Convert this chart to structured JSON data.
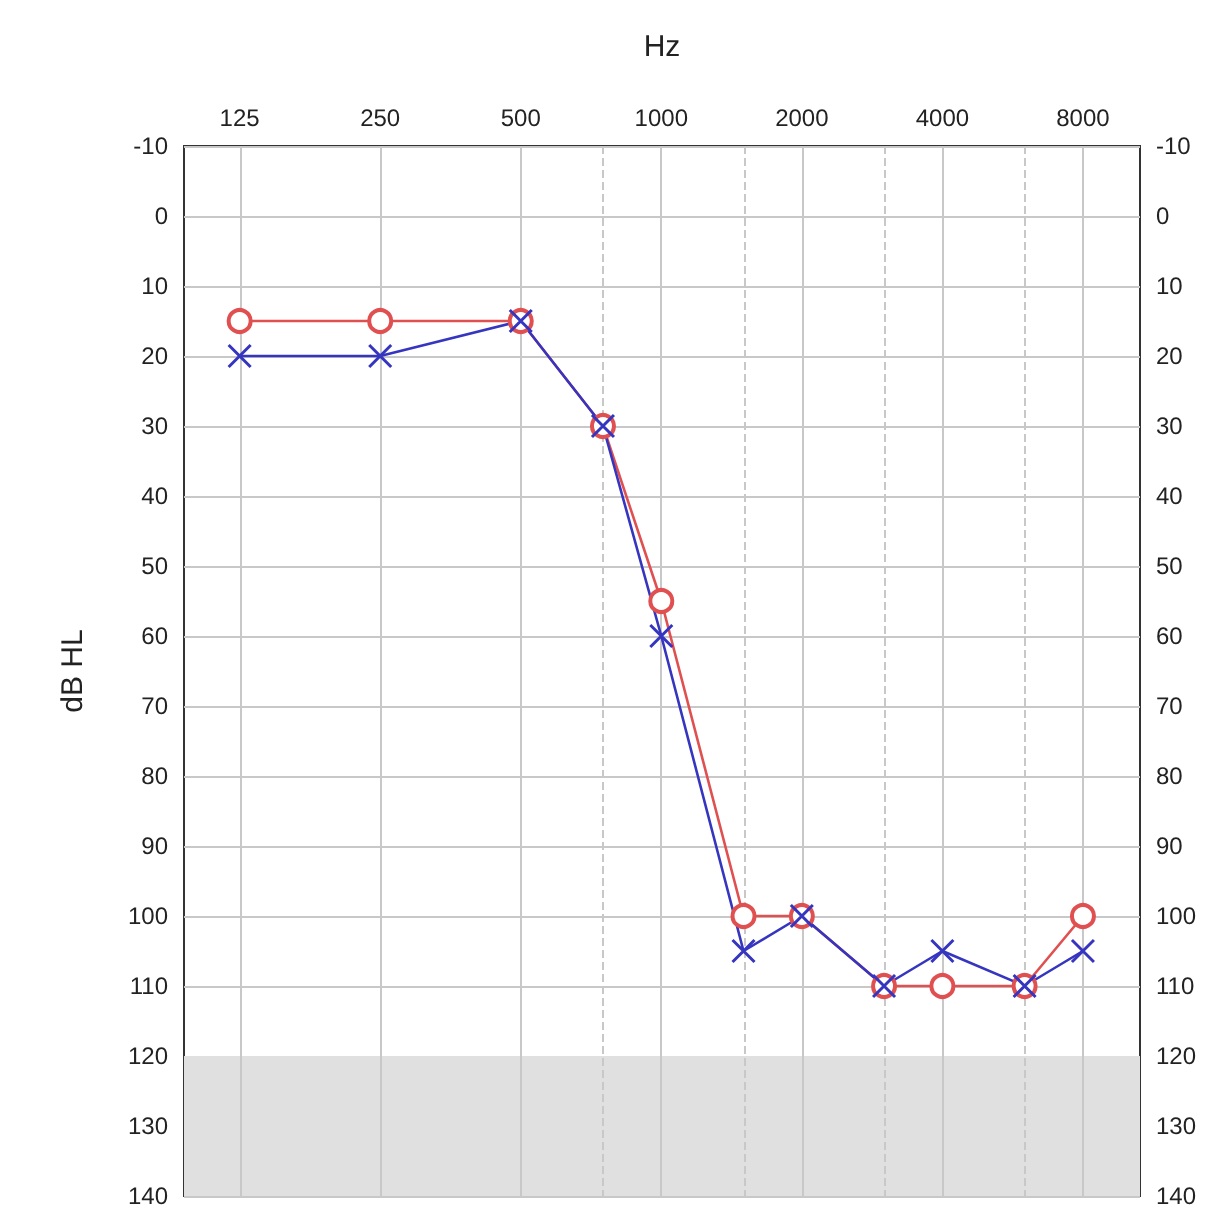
{
  "chart_data": {
    "type": "line",
    "xlabel": "Hz",
    "ylabel": "dB HL",
    "x": [
      125,
      250,
      500,
      750,
      1000,
      1500,
      2000,
      3000,
      4000,
      6000,
      8000
    ],
    "log": "x",
    "xlim": [
      95,
      10600
    ],
    "xticks": [
      125,
      250,
      500,
      {
        "value": 750,
        "label": null
      },
      1000,
      {
        "value": 1500,
        "label": null
      },
      2000,
      {
        "value": 3000,
        "label": null
      },
      4000,
      {
        "value": 6000,
        "label": null
      },
      8000
    ],
    "ylim": [
      140,
      -10
    ],
    "yticks": [
      -10,
      0,
      10,
      20,
      30,
      40,
      50,
      60,
      70,
      80,
      90,
      100,
      110,
      120,
      130,
      140
    ],
    "y2lim": [
      140,
      -10
    ],
    "y2ticks": [
      -10,
      0,
      10,
      20,
      30,
      40,
      50,
      60,
      70,
      80,
      90,
      100,
      110,
      120,
      130,
      140
    ],
    "grid": true,
    "bands": [
      {
        "axis": "y",
        "from": 120,
        "to": 140,
        "color": "#e0e0e0"
      }
    ],
    "series": [
      {
        "color": "#e05050",
        "marker": "circle",
        "values": [
          15,
          15,
          15,
          30,
          55,
          100,
          100,
          110,
          110,
          110,
          100
        ]
      },
      {
        "color": "#3535c0",
        "marker": "cross",
        "values": [
          20,
          20,
          15,
          30,
          60,
          105,
          100,
          110,
          105,
          110,
          105
        ]
      }
    ]
  }
}
